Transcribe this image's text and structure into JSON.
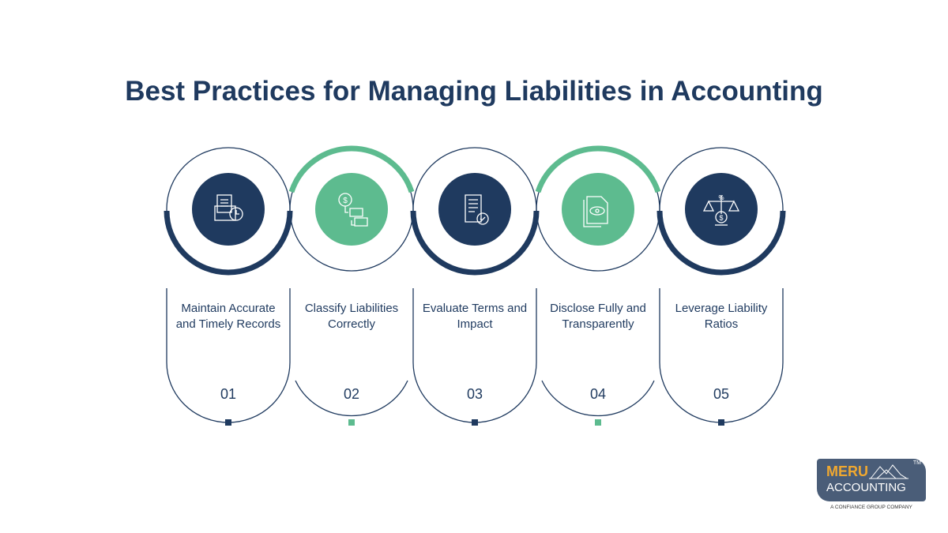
{
  "title": "Best Practices for Managing Liabilities in Accounting",
  "colors": {
    "navy": "#1f3a5f",
    "green": "#5dbb8f",
    "text": "#1f3a5f"
  },
  "steps": [
    {
      "number": "01",
      "label": "Maintain Accurate and Timely Records",
      "icon": "document-folder-clock-icon",
      "color": "navy"
    },
    {
      "number": "02",
      "label": "Classify Liabilities Correctly",
      "icon": "dollar-coin-tags-icon",
      "color": "green"
    },
    {
      "number": "03",
      "label": "Evaluate Terms and Impact",
      "icon": "scroll-checkmark-icon",
      "color": "navy"
    },
    {
      "number": "04",
      "label": "Disclose Fully and Transparently",
      "icon": "document-eye-icon",
      "color": "green"
    },
    {
      "number": "05",
      "label": "Leverage Liability Ratios",
      "icon": "balance-scale-percent-icon",
      "color": "navy"
    }
  ],
  "logo": {
    "line1": "MERU",
    "line2": "ACCOUNTING",
    "tm": "TM",
    "sub": "A CONFIANCE GROUP COMPANY"
  }
}
